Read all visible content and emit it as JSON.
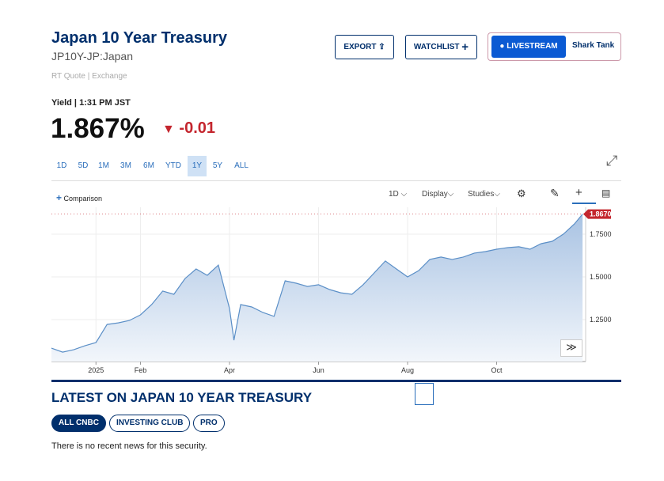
{
  "header": {
    "title": "Japan 10 Year Treasury",
    "symbol": "JP10Y-JP:Japan",
    "quote_source": "RT Quote | Exchange"
  },
  "buttons": {
    "export": "EXPORT",
    "watchlist": "WATCHLIST",
    "livestream": "LIVESTREAM",
    "show": "Shark Tank"
  },
  "quote": {
    "label": "Yield | 1:31 PM JST",
    "price": "1.867%",
    "change": "-0.01"
  },
  "ranges": [
    "1D",
    "5D",
    "1M",
    "3M",
    "6M",
    "YTD",
    "1Y",
    "5Y",
    "ALL"
  ],
  "toolbar": {
    "comparison": "Comparison",
    "interval": "1D",
    "display": "Display",
    "studies": "Studies"
  },
  "chart_data": {
    "type": "line",
    "x": [
      -1,
      -0.75,
      -0.5,
      -0.25,
      0,
      0.25,
      0.5,
      0.75,
      1,
      1.25,
      1.5,
      1.75,
      2,
      2.25,
      2.5,
      2.75,
      3,
      3.1,
      3.25,
      3.5,
      3.75,
      4,
      4.25,
      4.5,
      4.75,
      5,
      5.25,
      5.5,
      5.75,
      6,
      6.25,
      6.5,
      6.75,
      7,
      7.25,
      7.5,
      7.75,
      8,
      8.25,
      8.5,
      8.75,
      9,
      9.25,
      9.5,
      9.75,
      10,
      10.25,
      10.5,
      10.75,
      10.93
    ],
    "series": [
      {
        "color": "#5b8fc7",
        "values": [
          1.083,
          1.06,
          1.074,
          1.097,
          1.116,
          1.222,
          1.231,
          1.245,
          1.278,
          1.338,
          1.417,
          1.398,
          1.49,
          1.546,
          1.509,
          1.569,
          1.315,
          1.13,
          1.338,
          1.324,
          1.292,
          1.269,
          1.477,
          1.463,
          1.444,
          1.454,
          1.426,
          1.407,
          1.398,
          1.454,
          1.523,
          1.593,
          1.546,
          1.5,
          1.537,
          1.602,
          1.616,
          1.602,
          1.616,
          1.639,
          1.648,
          1.662,
          1.671,
          1.676,
          1.662,
          1.694,
          1.708,
          1.75,
          1.81,
          1.867
        ]
      }
    ],
    "current": {
      "value": 1.867,
      "label": "1.8670"
    },
    "xlim": [
      -1,
      11
    ],
    "xticks": [
      {
        "value": 0,
        "label": "2025"
      },
      {
        "value": 1,
        "label": "Feb"
      },
      {
        "value": 3,
        "label": "Apr"
      },
      {
        "value": 5,
        "label": "Jun"
      },
      {
        "value": 7,
        "label": "Aug"
      },
      {
        "value": 9,
        "label": "Oct"
      }
    ],
    "ylim": [
      1.005,
      1.907
    ],
    "yticks": [
      {
        "value": 1.25,
        "label": "1.2500"
      },
      {
        "value": 1.5,
        "label": "1.5000"
      },
      {
        "value": 1.75,
        "label": "1.7500"
      }
    ],
    "grid": true
  },
  "news": {
    "heading": "LATEST ON JAPAN 10 YEAR TREASURY",
    "tabs": [
      "ALL CNBC",
      "INVESTING CLUB",
      "PRO"
    ],
    "empty": "There is no recent news for this security."
  }
}
